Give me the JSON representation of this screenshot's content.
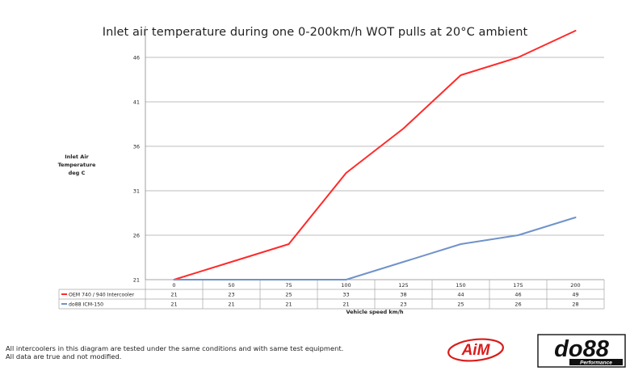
{
  "footnote": {
    "line1": "All intercoolers in this diagram are tested under the same conditions and with same test equipment.",
    "line2": "All data are true and not modified."
  },
  "logos": {
    "aim": "AiM",
    "do88": "do88",
    "do88_sub": "Performance"
  },
  "colors": {
    "oem": "#ff2a2a",
    "do88": "#6f93c9",
    "grid": "#a6a6a6",
    "axis": "#888888"
  },
  "chart_data": {
    "type": "line",
    "title": "Inlet air temperature during one 0-200km/h WOT pulls at 20°C ambient",
    "ylabel_lines": [
      "Inlet Air",
      "Temperature",
      "deg C"
    ],
    "xlabel": "Vehicle speed km/h",
    "categories": [
      "0",
      "50",
      "75",
      "100",
      "125",
      "150",
      "175",
      "200"
    ],
    "y_ticks": [
      "21",
      "26",
      "31",
      "36",
      "41",
      "46"
    ],
    "ylim": [
      21,
      49
    ],
    "grid": true,
    "legend": "data-table-left",
    "series": [
      {
        "name": "OEM 740 / 940 Intercooler",
        "values": [
          21,
          23,
          25,
          33,
          38,
          44,
          46,
          49
        ],
        "color": "#ff2a2a"
      },
      {
        "name": "do88 ICM-150",
        "values": [
          21,
          21,
          21,
          21,
          23,
          25,
          26,
          28
        ],
        "color": "#6f93c9"
      }
    ]
  }
}
